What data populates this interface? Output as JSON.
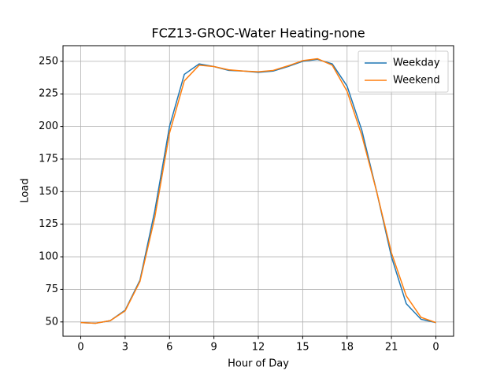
{
  "chart_data": {
    "type": "line",
    "title": "FCZ13-GROC-Water Heating-none",
    "x_label": "Hour of Day",
    "y_label": "Load",
    "x": [
      0,
      1,
      2,
      3,
      4,
      5,
      6,
      7,
      8,
      9,
      10,
      11,
      12,
      13,
      14,
      15,
      16,
      17,
      18,
      19,
      20,
      21,
      22,
      23,
      24
    ],
    "xlim": [
      -1.2,
      25.2
    ],
    "xticks": [
      0,
      3,
      6,
      9,
      12,
      15,
      18,
      21,
      {
        "value": 24,
        "label": "0"
      }
    ],
    "ylim": [
      39,
      262
    ],
    "yticks": [
      50,
      75,
      100,
      125,
      150,
      175,
      200,
      225,
      250
    ],
    "grid": true,
    "legend": "upper right",
    "series": [
      {
        "name": "Weekday",
        "color": "#1f77b4",
        "values": [
          49.5,
          49,
          51,
          59,
          82,
          135,
          200,
          240,
          248,
          246,
          243,
          242.5,
          241.5,
          242.5,
          246,
          250,
          251.5,
          248,
          231,
          197,
          150,
          100,
          64,
          52,
          49.5
        ]
      },
      {
        "name": "Weekend",
        "color": "#ff7f0e",
        "values": [
          49.5,
          49,
          51,
          58.5,
          81,
          130,
          195,
          235,
          247,
          246,
          243.5,
          242.5,
          242,
          243,
          246.5,
          250.5,
          252,
          247,
          227,
          193,
          150,
          103,
          70,
          53.5,
          49.5
        ]
      }
    ]
  }
}
